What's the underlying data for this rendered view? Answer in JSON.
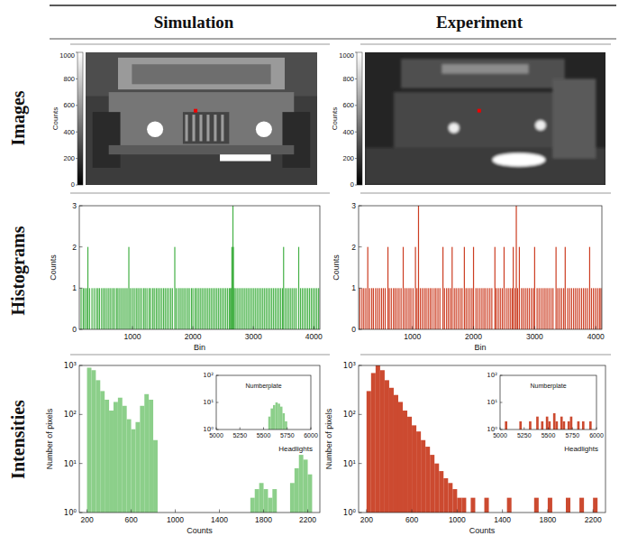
{
  "column_titles": [
    "Simulation",
    "Experiment"
  ],
  "row_titles": [
    "Images",
    "Histograms",
    "Intensities"
  ],
  "chart_data": [
    {
      "type": "image",
      "ylabel": "Counts",
      "colorbar_range": [
        0,
        1000
      ],
      "colorbar_ticks": [
        0,
        200,
        400,
        600,
        800,
        1000
      ]
    },
    {
      "type": "image",
      "ylabel": "Counts",
      "colorbar_range": [
        0,
        1000
      ],
      "colorbar_ticks": [
        0,
        200,
        400,
        600,
        800,
        1000
      ]
    },
    {
      "type": "bar",
      "color": "#44b045",
      "xlabel": "Bin",
      "ylabel": "Counts",
      "xlim": [
        120,
        4100
      ],
      "ylim": [
        0,
        3
      ],
      "xticks": [
        1000,
        2000,
        3000,
        4000
      ],
      "yticks": [
        0,
        1,
        2,
        3
      ],
      "x": [
        150,
        185,
        210,
        240,
        262,
        290,
        330,
        365,
        400,
        428,
        455,
        490,
        520,
        548,
        580,
        610,
        640,
        672,
        700,
        735,
        760,
        790,
        820,
        850,
        880,
        910,
        940,
        968,
        1000,
        1030,
        1062,
        1090,
        1120,
        1150,
        1185,
        1210,
        1240,
        1275,
        1300,
        1335,
        1360,
        1392,
        1420,
        1450,
        1480,
        1512,
        1540,
        1570,
        1600,
        1632,
        1660,
        1700,
        1725,
        1760,
        1790,
        1820,
        1850,
        1880,
        1912,
        1940,
        1975,
        2000,
        2035,
        2060,
        2090,
        2120,
        2150,
        2180,
        2210,
        2240,
        2270,
        2300,
        2330,
        2360,
        2390,
        2420,
        2450,
        2480,
        2510,
        2540,
        2570,
        2600,
        2620,
        2635,
        2645,
        2655,
        2662,
        2670,
        2680,
        2700,
        2730,
        2760,
        2790,
        2820,
        2850,
        2880,
        2910,
        2940,
        2970,
        3000,
        3030,
        3060,
        3090,
        3120,
        3150,
        3180,
        3210,
        3240,
        3270,
        3300,
        3330,
        3360,
        3390,
        3420,
        3450,
        3480,
        3500,
        3530,
        3560,
        3590,
        3620,
        3650,
        3680,
        3710,
        3750,
        3780,
        3810,
        3840,
        3870,
        3900,
        3930,
        3960,
        3990,
        4020,
        4050,
        4080
      ],
      "values": [
        1,
        1,
        1,
        1,
        2,
        1,
        1,
        1,
        1,
        1,
        1,
        1,
        1,
        1,
        1,
        1,
        1,
        1,
        1,
        1,
        1,
        1,
        1,
        1,
        1,
        1,
        2,
        1,
        1,
        1,
        1,
        1,
        1,
        1,
        1,
        1,
        1,
        1,
        1,
        1,
        1,
        1,
        1,
        1,
        1,
        1,
        1,
        1,
        1,
        1,
        1,
        2,
        1,
        1,
        1,
        1,
        1,
        1,
        1,
        1,
        1,
        1,
        1,
        1,
        1,
        1,
        1,
        1,
        1,
        1,
        1,
        1,
        1,
        1,
        1,
        1,
        1,
        1,
        1,
        1,
        1,
        1,
        1,
        1,
        2,
        1,
        3,
        2,
        1,
        1,
        1,
        1,
        1,
        1,
        1,
        1,
        1,
        1,
        1,
        1,
        1,
        1,
        1,
        1,
        1,
        1,
        1,
        1,
        1,
        1,
        1,
        1,
        1,
        1,
        1,
        1,
        2,
        1,
        1,
        1,
        1,
        1,
        1,
        1,
        2,
        1,
        1,
        1,
        1,
        1,
        1,
        1,
        1,
        1,
        1,
        1
      ]
    },
    {
      "type": "bar",
      "color": "#cc3d22",
      "xlabel": "Bin",
      "ylabel": "Counts",
      "xlim": [
        120,
        4100
      ],
      "ylim": [
        0,
        3
      ],
      "xticks": [
        1000,
        2000,
        3000,
        4000
      ],
      "yticks": [
        0,
        1,
        2,
        3
      ],
      "x": [
        140,
        175,
        205,
        238,
        270,
        300,
        335,
        362,
        398,
        430,
        462,
        495,
        525,
        555,
        600,
        622,
        655,
        690,
        718,
        750,
        782,
        815,
        850,
        880,
        912,
        945,
        975,
        1010,
        1050,
        1075,
        1100,
        1130,
        1162,
        1195,
        1225,
        1258,
        1290,
        1320,
        1355,
        1385,
        1418,
        1450,
        1500,
        1525,
        1560,
        1590,
        1622,
        1650,
        1685,
        1715,
        1748,
        1780,
        1812,
        1850,
        1878,
        1910,
        1942,
        1975,
        2000,
        2040,
        2072,
        2105,
        2138,
        2170,
        2200,
        2235,
        2268,
        2300,
        2350,
        2372,
        2405,
        2438,
        2470,
        2500,
        2535,
        2568,
        2600,
        2630,
        2650,
        2680,
        2700,
        2722,
        2750,
        2785,
        2815,
        2848,
        2880,
        2912,
        2945,
        2978,
        3000,
        3040,
        3072,
        3105,
        3138,
        3170,
        3202,
        3235,
        3268,
        3300,
        3350,
        3378,
        3410,
        3442,
        3475,
        3500,
        3540,
        3572,
        3605,
        3638,
        3670,
        3702,
        3735,
        3768,
        3800,
        3832,
        3865,
        3900,
        3930,
        3962,
        3995,
        4028,
        4060,
        4085
      ],
      "values": [
        1,
        1,
        1,
        1,
        2,
        1,
        1,
        1,
        1,
        1,
        1,
        1,
        1,
        1,
        2,
        1,
        1,
        1,
        1,
        1,
        1,
        1,
        2,
        1,
        1,
        1,
        1,
        1,
        2,
        1,
        3,
        1,
        1,
        1,
        1,
        1,
        1,
        1,
        1,
        1,
        1,
        1,
        2,
        1,
        1,
        1,
        1,
        2,
        1,
        1,
        1,
        1,
        1,
        2,
        1,
        1,
        1,
        1,
        2,
        1,
        1,
        1,
        1,
        1,
        1,
        1,
        1,
        1,
        2,
        1,
        1,
        1,
        1,
        2,
        1,
        1,
        1,
        1,
        2,
        1,
        3,
        1,
        2,
        1,
        1,
        1,
        1,
        1,
        1,
        1,
        2,
        1,
        1,
        1,
        1,
        1,
        1,
        1,
        1,
        1,
        2,
        1,
        1,
        1,
        1,
        2,
        1,
        1,
        1,
        1,
        1,
        1,
        1,
        1,
        1,
        1,
        1,
        2,
        1,
        1,
        1,
        1,
        1,
        1
      ]
    },
    {
      "type": "histogram",
      "color": "#8ccf8a",
      "xlabel": "Counts",
      "ylabel": "Number of pixels",
      "annotations": [
        "Headlights"
      ],
      "log": "y",
      "xlim": [
        130,
        2310
      ],
      "ylim": [
        1,
        1000
      ],
      "xticks": [
        200,
        600,
        1000,
        1400,
        1800,
        2200
      ],
      "yticks": [
        {
          "value": 1,
          "label": "10⁰"
        },
        {
          "value": 10,
          "label": "10¹"
        },
        {
          "value": 100,
          "label": "10²"
        },
        {
          "value": 1000,
          "label": "10³"
        }
      ],
      "bins": [
        200,
        240,
        280,
        320,
        360,
        400,
        440,
        480,
        520,
        560,
        600,
        640,
        680,
        720,
        760,
        800,
        840,
        880,
        920,
        960,
        1000,
        1040,
        1080,
        1120,
        1160,
        1200,
        1240,
        1280,
        1320,
        1360,
        1400,
        1440,
        1480,
        1520,
        1560,
        1600,
        1640,
        1680,
        1720,
        1760,
        1800,
        1840,
        1880,
        1920,
        1960,
        2000,
        2040,
        2080,
        2120,
        2160,
        2200,
        2240
      ],
      "counts": [
        900,
        800,
        500,
        300,
        200,
        120,
        180,
        220,
        150,
        80,
        50,
        70,
        150,
        260,
        200,
        30,
        0,
        0,
        0,
        0,
        0,
        0,
        0,
        0,
        0,
        0,
        0,
        0,
        0,
        0,
        0,
        0,
        0,
        0,
        0,
        0,
        1,
        2,
        3,
        4,
        3,
        2,
        3,
        1,
        0,
        1,
        4,
        8,
        15,
        12,
        6
      ]
    },
    {
      "type": "histogram",
      "title": "Numberplate",
      "color": "#8ccf8a",
      "log": "y",
      "xlim": [
        5000,
        6000
      ],
      "ylim": [
        1,
        100
      ],
      "xticks": [
        5000,
        5250,
        5500,
        5750,
        6000
      ],
      "yticks": [
        {
          "value": 1,
          "label": "10⁰"
        },
        {
          "value": 10,
          "label": "10¹"
        },
        {
          "value": 100,
          "label": "10²"
        }
      ],
      "bins": [
        5000,
        5025,
        5050,
        5075,
        5100,
        5125,
        5150,
        5175,
        5200,
        5225,
        5250,
        5275,
        5300,
        5325,
        5350,
        5375,
        5400,
        5425,
        5450,
        5475,
        5500,
        5525,
        5550,
        5575,
        5600,
        5625,
        5650,
        5675,
        5700,
        5725,
        5750,
        5775,
        5800,
        5825,
        5850,
        5875,
        5900,
        5925,
        5950,
        5975,
        6000
      ],
      "counts": [
        0,
        0,
        0,
        0,
        0,
        0,
        0,
        0,
        0,
        0,
        0,
        0,
        0,
        0,
        0,
        0,
        0,
        0,
        0,
        0,
        0,
        0,
        3,
        6,
        8,
        10,
        9,
        7,
        4,
        2,
        0,
        0,
        0,
        0,
        0,
        0,
        0,
        0,
        0,
        0
      ]
    },
    {
      "type": "histogram",
      "color": "#cc4a30",
      "xlabel": "Counts",
      "ylabel": "Number of pixels",
      "annotations": [
        "Headlights"
      ],
      "log": "y",
      "xlim": [
        130,
        2310
      ],
      "ylim": [
        1,
        1000
      ],
      "xticks": [
        200,
        600,
        1000,
        1400,
        1800,
        2200
      ],
      "yticks": [
        {
          "value": 1,
          "label": "10⁰"
        },
        {
          "value": 10,
          "label": "10¹"
        },
        {
          "value": 100,
          "label": "10²"
        },
        {
          "value": 1000,
          "label": "10³"
        }
      ],
      "bins": [
        200,
        240,
        280,
        320,
        360,
        400,
        440,
        480,
        520,
        560,
        600,
        640,
        680,
        720,
        760,
        800,
        840,
        880,
        920,
        960,
        1000,
        1040,
        1080,
        1120,
        1160,
        1200,
        1240,
        1280,
        1320,
        1360,
        1400,
        1440,
        1480,
        1520,
        1560,
        1600,
        1640,
        1680,
        1720,
        1760,
        1800,
        1840,
        1880,
        1920,
        1960,
        2000,
        2040,
        2080,
        2120,
        2160,
        2200,
        2240
      ],
      "counts": [
        300,
        700,
        1000,
        800,
        500,
        350,
        250,
        180,
        120,
        90,
        60,
        45,
        30,
        22,
        15,
        10,
        7,
        5,
        4,
        3,
        2,
        2,
        1,
        2,
        1,
        1,
        2,
        1,
        1,
        0,
        1,
        2,
        1,
        1,
        0,
        1,
        1,
        2,
        1,
        1,
        2,
        1,
        1,
        1,
        2,
        1,
        1,
        2,
        1,
        1,
        2
      ]
    },
    {
      "type": "histogram",
      "title": "Numberplate",
      "color": "#cc4a30",
      "log": "y",
      "xlim": [
        5000,
        6000
      ],
      "ylim": [
        1,
        100
      ],
      "xticks": [
        5000,
        5250,
        5500,
        5750,
        6000
      ],
      "yticks": [
        {
          "value": 1,
          "label": "10⁰"
        },
        {
          "value": 10,
          "label": "10¹"
        },
        {
          "value": 100,
          "label": "10²"
        }
      ],
      "bins": [
        5000,
        5025,
        5050,
        5075,
        5100,
        5125,
        5150,
        5175,
        5200,
        5225,
        5250,
        5275,
        5300,
        5325,
        5350,
        5375,
        5400,
        5425,
        5450,
        5475,
        5500,
        5525,
        5550,
        5575,
        5600,
        5625,
        5650,
        5675,
        5700,
        5725,
        5750,
        5775,
        5800,
        5825,
        5850,
        5875,
        5900,
        5925,
        5950,
        5975,
        6000
      ],
      "counts": [
        1,
        0,
        2,
        1,
        0,
        1,
        1,
        0,
        2,
        1,
        0,
        1,
        2,
        1,
        1,
        3,
        1,
        2,
        1,
        3,
        2,
        1,
        4,
        2,
        1,
        3,
        2,
        1,
        2,
        3,
        1,
        1,
        2,
        1,
        2,
        1,
        1,
        2,
        1,
        1
      ]
    }
  ]
}
